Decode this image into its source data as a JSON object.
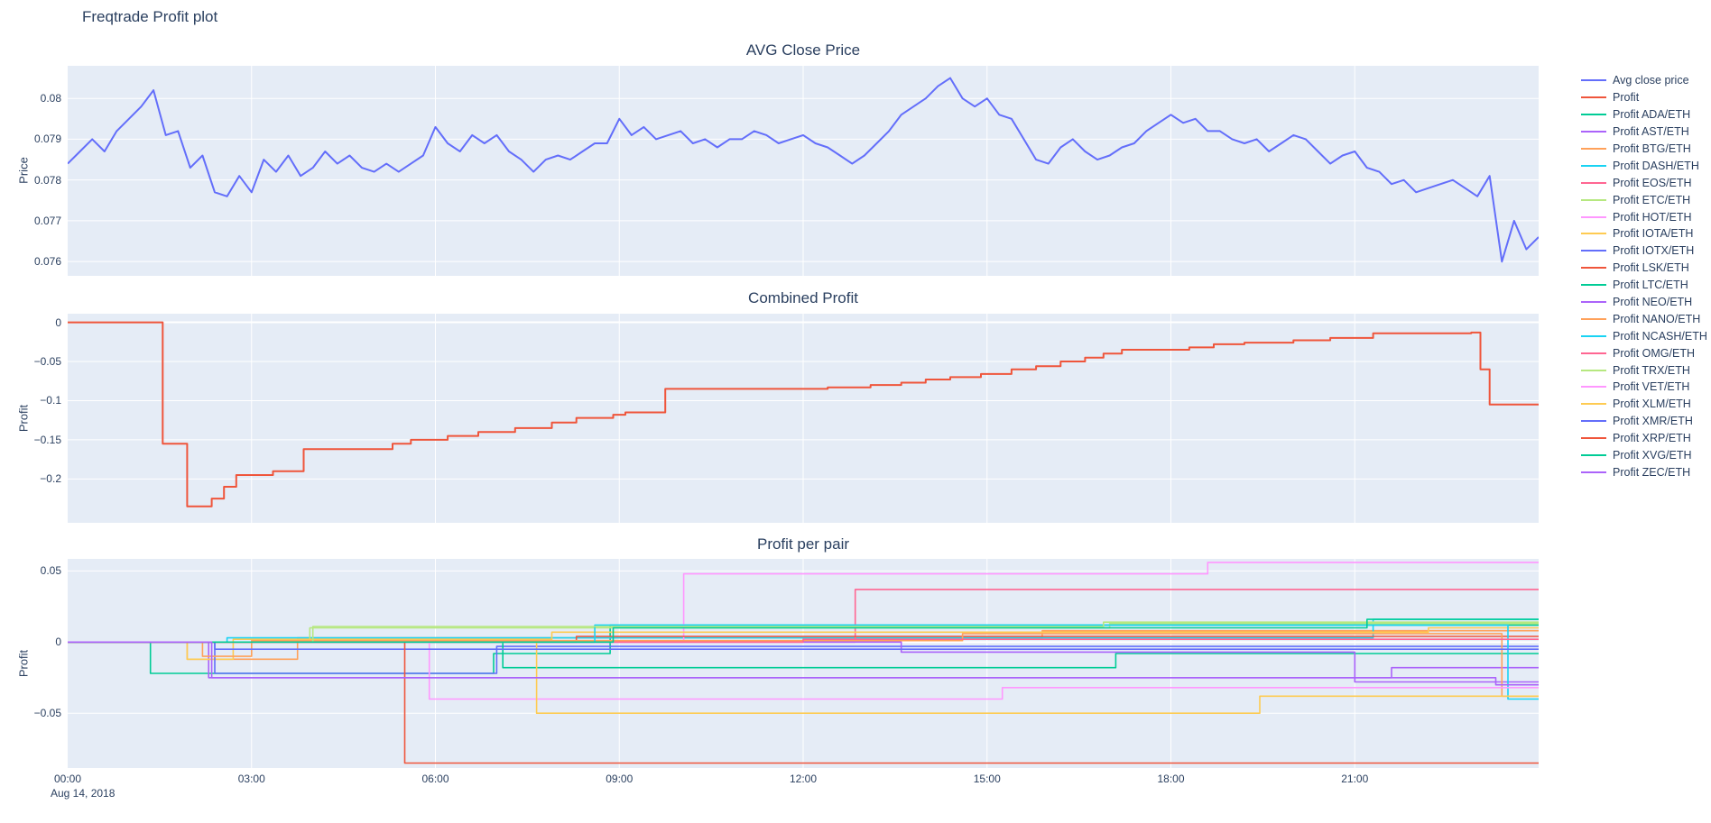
{
  "figure": {
    "title": "Freqtrade Profit plot"
  },
  "colors": {
    "plot_bg": "#e5ecf6",
    "grid": "#ffffff",
    "text": "#2a3f5f"
  },
  "xaxis": {
    "ticks": [
      "00:00",
      "03:00",
      "06:00",
      "09:00",
      "12:00",
      "15:00",
      "18:00",
      "21:00"
    ],
    "tick_hours": [
      0,
      3,
      6,
      9,
      12,
      15,
      18,
      21
    ],
    "range_hours": [
      0,
      24
    ],
    "date_label": "Aug 14, 2018"
  },
  "chart_data": [
    {
      "type": "line",
      "title": "AVG Close Price",
      "ylabel": "Price",
      "ylim": [
        0.07565,
        0.0808
      ],
      "yticks": [
        0.076,
        0.077,
        0.078,
        0.079,
        0.08
      ],
      "ytick_labels": [
        "0.076",
        "0.077",
        "0.078",
        "0.079",
        "0.08"
      ],
      "series": [
        {
          "name": "Avg close price",
          "color": "#636efa",
          "mode": "line",
          "x0": 0,
          "dx": 0.2,
          "values": [
            0.0784,
            0.0787,
            0.079,
            0.0787,
            0.0792,
            0.0795,
            0.0798,
            0.0802,
            0.0791,
            0.0792,
            0.0783,
            0.0786,
            0.0777,
            0.0776,
            0.0781,
            0.0777,
            0.0785,
            0.0782,
            0.0786,
            0.0781,
            0.0783,
            0.0787,
            0.0784,
            0.0786,
            0.0783,
            0.0782,
            0.0784,
            0.0782,
            0.0784,
            0.0786,
            0.0793,
            0.0789,
            0.0787,
            0.0791,
            0.0789,
            0.0791,
            0.0787,
            0.0785,
            0.0782,
            0.0785,
            0.0786,
            0.0785,
            0.0787,
            0.0789,
            0.0789,
            0.0795,
            0.0791,
            0.0793,
            0.079,
            0.0791,
            0.0792,
            0.0789,
            0.079,
            0.0788,
            0.079,
            0.079,
            0.0792,
            0.0791,
            0.0789,
            0.079,
            0.0791,
            0.0789,
            0.0788,
            0.0786,
            0.0784,
            0.0786,
            0.0789,
            0.0792,
            0.0796,
            0.0798,
            0.08,
            0.0803,
            0.0805,
            0.08,
            0.0798,
            0.08,
            0.0796,
            0.0795,
            0.079,
            0.0785,
            0.0784,
            0.0788,
            0.079,
            0.0787,
            0.0785,
            0.0786,
            0.0788,
            0.0789,
            0.0792,
            0.0794,
            0.0796,
            0.0794,
            0.0795,
            0.0792,
            0.0792,
            0.079,
            0.0789,
            0.079,
            0.0787,
            0.0789,
            0.0791,
            0.079,
            0.0787,
            0.0784,
            0.0786,
            0.0787,
            0.0783,
            0.0782,
            0.0779,
            0.078,
            0.0777,
            0.0778,
            0.0779,
            0.078,
            0.0778,
            0.0776,
            0.0781,
            0.076,
            0.077,
            0.0763,
            0.0766
          ]
        }
      ]
    },
    {
      "type": "line",
      "title": "Combined Profit",
      "ylabel": "Profit",
      "ylim": [
        -0.256,
        0.011
      ],
      "yticks": [
        0,
        -0.05,
        -0.1,
        -0.15,
        -0.2
      ],
      "ytick_labels": [
        "0",
        "−0.05",
        "−0.1",
        "−0.15",
        "−0.2"
      ],
      "series": [
        {
          "name": "Profit",
          "color": "#EF553B",
          "mode": "step",
          "points": [
            [
              0,
              0
            ],
            [
              1.55,
              -0.155
            ],
            [
              1.95,
              -0.235
            ],
            [
              2.35,
              -0.225
            ],
            [
              2.55,
              -0.21
            ],
            [
              2.75,
              -0.195
            ],
            [
              3.35,
              -0.19
            ],
            [
              3.85,
              -0.162
            ],
            [
              5.3,
              -0.155
            ],
            [
              5.6,
              -0.15
            ],
            [
              6.2,
              -0.145
            ],
            [
              6.7,
              -0.14
            ],
            [
              7.3,
              -0.135
            ],
            [
              7.9,
              -0.128
            ],
            [
              8.3,
              -0.122
            ],
            [
              8.9,
              -0.118
            ],
            [
              9.1,
              -0.115
            ],
            [
              9.75,
              -0.085
            ],
            [
              12.4,
              -0.083
            ],
            [
              13.1,
              -0.08
            ],
            [
              13.6,
              -0.077
            ],
            [
              14.0,
              -0.073
            ],
            [
              14.4,
              -0.07
            ],
            [
              14.9,
              -0.066
            ],
            [
              15.4,
              -0.06
            ],
            [
              15.8,
              -0.056
            ],
            [
              16.2,
              -0.05
            ],
            [
              16.6,
              -0.045
            ],
            [
              16.9,
              -0.04
            ],
            [
              17.2,
              -0.035
            ],
            [
              18.3,
              -0.032
            ],
            [
              18.7,
              -0.028
            ],
            [
              19.2,
              -0.026
            ],
            [
              20.0,
              -0.023
            ],
            [
              20.6,
              -0.02
            ],
            [
              21.3,
              -0.014
            ],
            [
              22.9,
              -0.013
            ],
            [
              23.05,
              -0.06
            ],
            [
              23.2,
              -0.105
            ]
          ]
        }
      ]
    },
    {
      "type": "line",
      "title": "Profit per pair",
      "ylabel": "Profit",
      "ylim": [
        -0.0885,
        0.0585
      ],
      "yticks": [
        0.05,
        0,
        -0.05
      ],
      "ytick_labels": [
        "0.05",
        "0",
        "−0.05"
      ],
      "series": [
        {
          "name": "Profit ADA/ETH",
          "color": "#00cc96",
          "mode": "step",
          "points": [
            [
              0,
              0
            ],
            [
              1.35,
              -0.022
            ],
            [
              6.95,
              -0.008
            ],
            [
              8.85,
              0.012
            ]
          ]
        },
        {
          "name": "Profit AST/ETH",
          "color": "#ab63fa",
          "mode": "step",
          "points": [
            [
              0,
              0
            ],
            [
              2.3,
              -0.025
            ],
            [
              21.6,
              -0.018
            ]
          ]
        },
        {
          "name": "Profit BTG/ETH",
          "color": "#FFA15A",
          "mode": "step",
          "points": [
            [
              0,
              0
            ],
            [
              1.95,
              -0.012
            ],
            [
              3.75,
              0.003
            ],
            [
              15.9,
              0.008
            ]
          ]
        },
        {
          "name": "Profit DASH/ETH",
          "color": "#19d3f3",
          "mode": "step",
          "points": [
            [
              0,
              0
            ],
            [
              2.6,
              0.003
            ],
            [
              21.3,
              0.016
            ]
          ]
        },
        {
          "name": "Profit EOS/ETH",
          "color": "#FF6692",
          "mode": "step",
          "points": [
            [
              0,
              0
            ],
            [
              12.85,
              0.037
            ]
          ]
        },
        {
          "name": "Profit ETC/ETH",
          "color": "#B6E880",
          "mode": "step",
          "points": [
            [
              0,
              0
            ],
            [
              3.95,
              0.01
            ],
            [
              17.0,
              0.013
            ]
          ]
        },
        {
          "name": "Profit HOT/ETH",
          "color": "#FF97FF",
          "mode": "step",
          "points": [
            [
              0,
              0
            ],
            [
              10.05,
              0.048
            ],
            [
              18.6,
              0.056
            ]
          ]
        },
        {
          "name": "Profit IOTA/ETH",
          "color": "#FECB52",
          "mode": "step",
          "points": [
            [
              0,
              0
            ],
            [
              1.95,
              -0.012
            ],
            [
              2.7,
              0.002
            ],
            [
              7.9,
              0.007
            ],
            [
              22.2,
              0.01
            ]
          ]
        },
        {
          "name": "Profit IOTX/ETH",
          "color": "#636efa",
          "mode": "step",
          "points": [
            [
              0,
              0
            ],
            [
              2.4,
              -0.022
            ],
            [
              7.0,
              -0.003
            ]
          ]
        },
        {
          "name": "Profit LSK/ETH",
          "color": "#EF553B",
          "mode": "step",
          "points": [
            [
              0,
              0
            ],
            [
              8.3,
              0.004
            ]
          ]
        },
        {
          "name": "Profit LTC/ETH",
          "color": "#00cc96",
          "mode": "step",
          "points": [
            [
              0,
              0
            ],
            [
              7.1,
              -0.018
            ],
            [
              17.1,
              -0.008
            ]
          ]
        },
        {
          "name": "Profit NEO/ETH",
          "color": "#ab63fa",
          "mode": "step",
          "points": [
            [
              0,
              0
            ],
            [
              13.6,
              -0.007
            ],
            [
              21.0,
              -0.028
            ]
          ]
        },
        {
          "name": "Profit NANO/ETH",
          "color": "#FFA15A",
          "mode": "step",
          "points": [
            [
              0,
              0
            ],
            [
              2.2,
              -0.01
            ],
            [
              3.0,
              0.001
            ],
            [
              14.6,
              0.006
            ],
            [
              23.4,
              -0.038
            ]
          ]
        },
        {
          "name": "Profit NCASH/ETH",
          "color": "#19d3f3",
          "mode": "step",
          "points": [
            [
              0,
              0
            ],
            [
              8.6,
              0.012
            ],
            [
              23.5,
              -0.04
            ]
          ]
        },
        {
          "name": "Profit OMG/ETH",
          "color": "#FF6692",
          "mode": "step",
          "points": [
            [
              0,
              0
            ],
            [
              12.0,
              0.002
            ]
          ]
        },
        {
          "name": "Profit TRX/ETH",
          "color": "#B6E880",
          "mode": "step",
          "points": [
            [
              0,
              0
            ],
            [
              4.0,
              0.011
            ],
            [
              16.9,
              0.014
            ]
          ]
        },
        {
          "name": "Profit VET/ETH",
          "color": "#FF97FF",
          "mode": "step",
          "points": [
            [
              0,
              0
            ],
            [
              5.9,
              -0.04
            ],
            [
              15.25,
              -0.032
            ]
          ]
        },
        {
          "name": "Profit XLM/ETH",
          "color": "#FECB52",
          "mode": "step",
          "points": [
            [
              0,
              0
            ],
            [
              7.65,
              -0.05
            ],
            [
              19.45,
              -0.038
            ]
          ]
        },
        {
          "name": "Profit XMR/ETH",
          "color": "#636efa",
          "mode": "step",
          "points": [
            [
              0,
              0
            ],
            [
              2.4,
              -0.005
            ]
          ]
        },
        {
          "name": "Profit XRP/ETH",
          "color": "#EF553B",
          "mode": "step",
          "points": [
            [
              0,
              0
            ],
            [
              5.5,
              -0.085
            ]
          ]
        },
        {
          "name": "Profit XVG/ETH",
          "color": "#00cc96",
          "mode": "step",
          "points": [
            [
              0,
              0
            ],
            [
              8.9,
              0.01
            ],
            [
              21.2,
              0.016
            ]
          ]
        },
        {
          "name": "Profit ZEC/ETH",
          "color": "#ab63fa",
          "mode": "step",
          "points": [
            [
              0,
              0
            ],
            [
              2.35,
              -0.025
            ],
            [
              23.3,
              -0.03
            ]
          ]
        }
      ]
    }
  ]
}
